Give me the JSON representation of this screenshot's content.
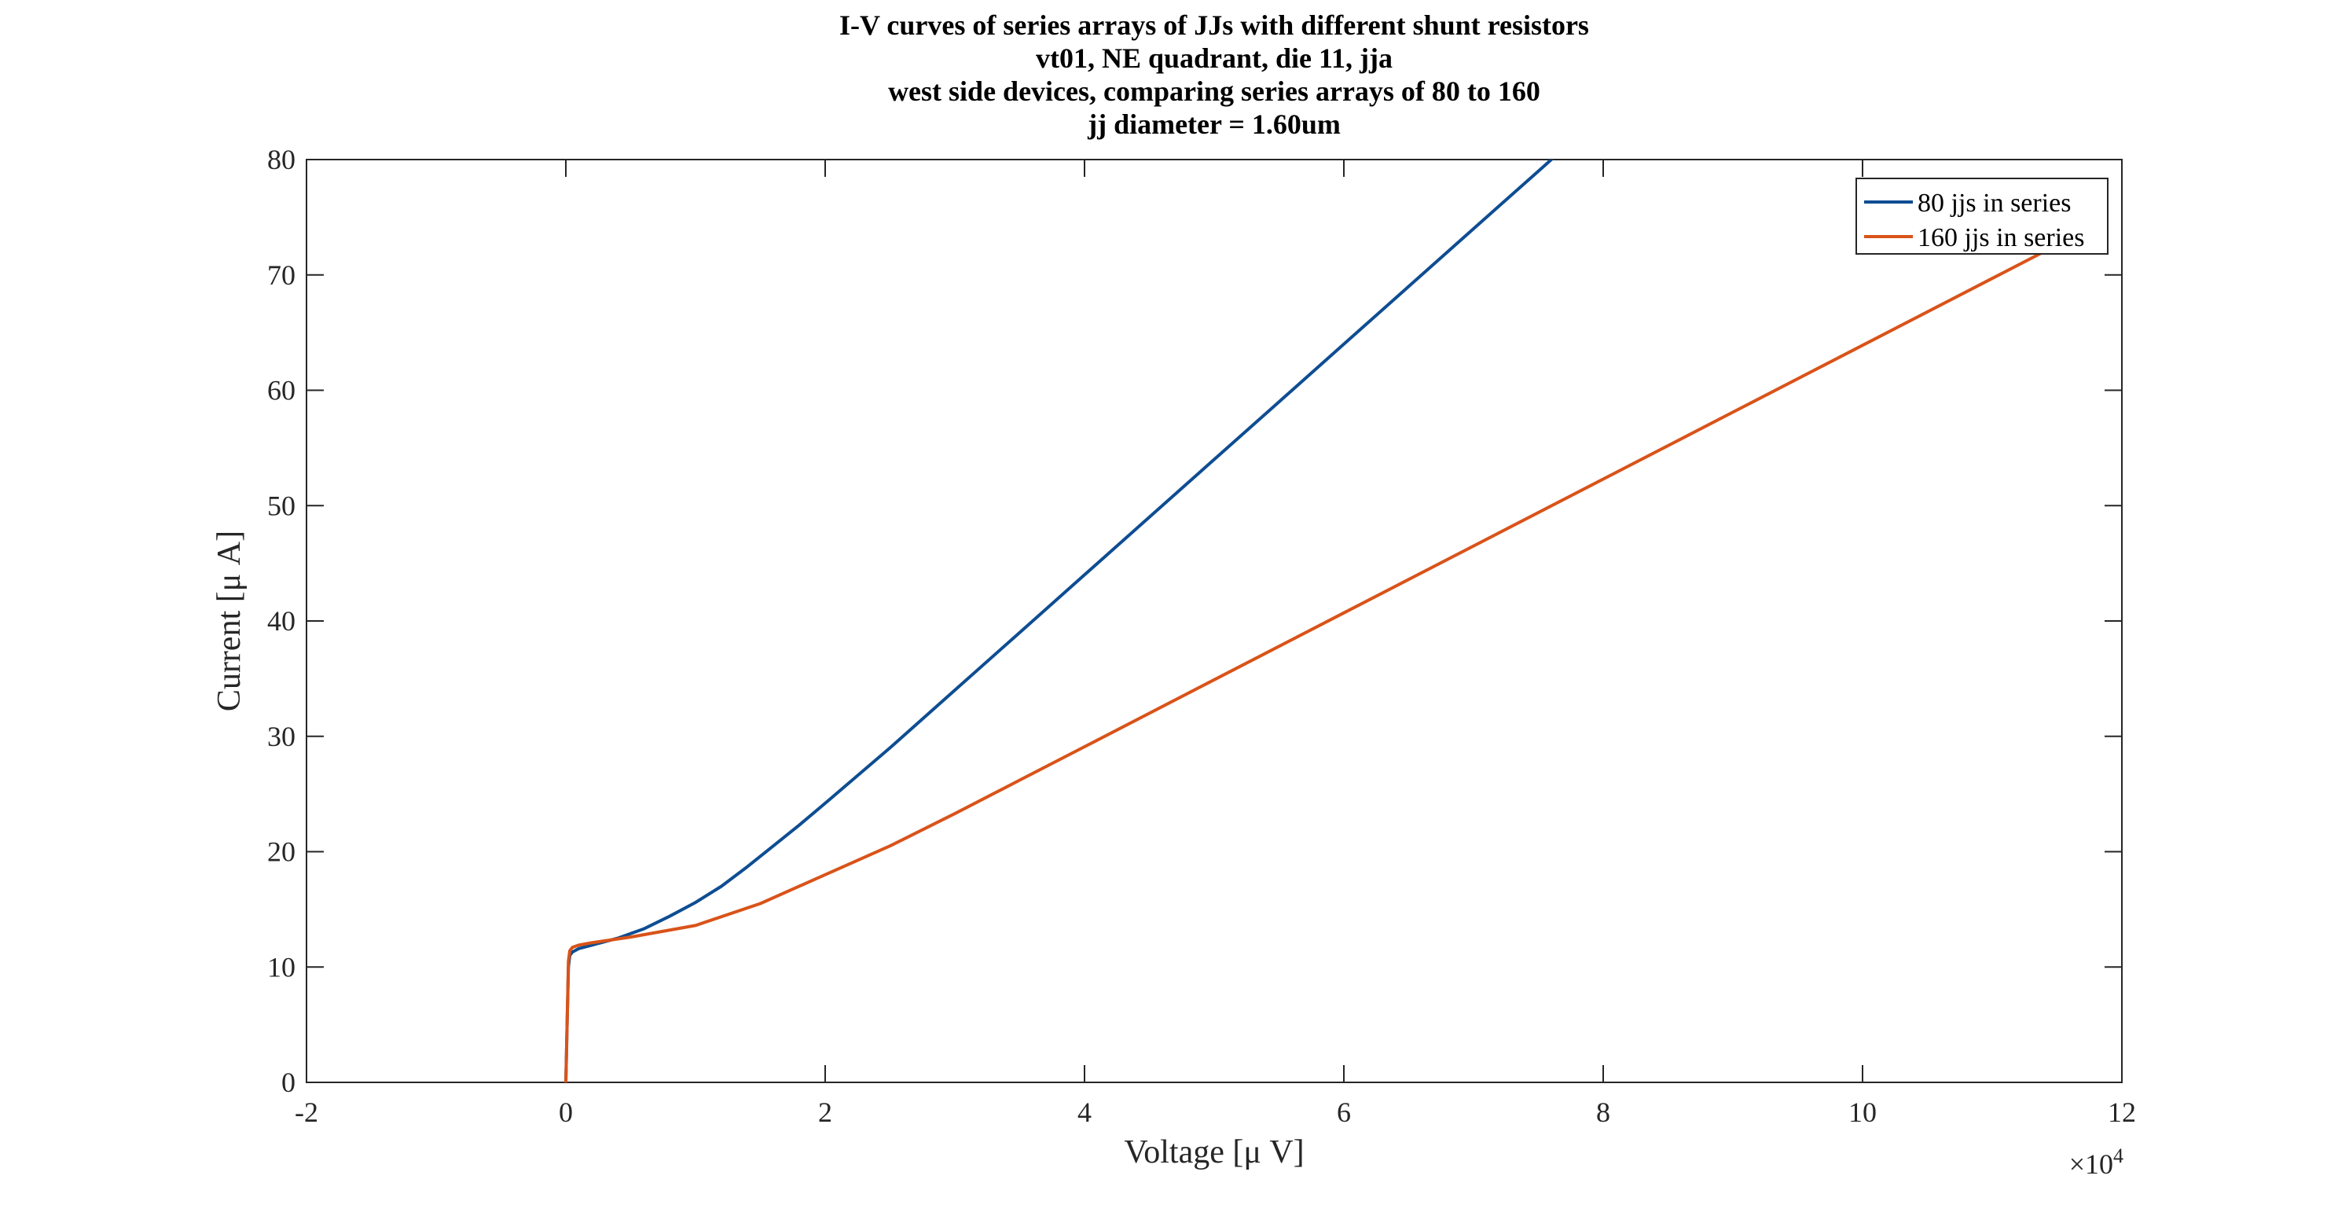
{
  "chart_data": {
    "type": "line",
    "title": [
      "I-V curves of series arrays of JJs with different shunt resistors",
      "vt01, NE quadrant, die 11, jja",
      "west side devices, comparing series arrays of 80 to 160",
      "jj diameter = 1.60um"
    ],
    "xlabel": "Voltage [μ V]",
    "ylabel": "Current [μ A]",
    "x_exponent_label": "×10",
    "x_exponent_power": "4",
    "xlim": [
      -2,
      12
    ],
    "ylim": [
      0,
      80
    ],
    "x_ticks": [
      -2,
      0,
      2,
      4,
      6,
      8,
      10,
      12
    ],
    "y_ticks": [
      0,
      10,
      20,
      30,
      40,
      50,
      60,
      70,
      80
    ],
    "grid": false,
    "legend_position": "top-right",
    "series": [
      {
        "name": "80 jjs in series",
        "color": "#0e4d92",
        "x": [
          0.0,
          0.01,
          0.02,
          0.03,
          0.05,
          0.1,
          0.2,
          0.4,
          0.6,
          0.8,
          1.0,
          1.2,
          1.4,
          1.6,
          1.8,
          2.0,
          2.5,
          3.0,
          3.5,
          4.0,
          4.5,
          5.0,
          5.5,
          6.0,
          6.5,
          7.0,
          7.5,
          8.0
        ],
        "y": [
          0.0,
          5.0,
          10.0,
          11.0,
          11.3,
          11.6,
          11.9,
          12.5,
          13.3,
          14.4,
          15.6,
          17.0,
          18.7,
          20.5,
          22.3,
          24.2,
          29.0,
          34.0,
          39.0,
          44.0,
          49.0,
          54.0,
          59.0,
          64.0,
          69.0,
          74.0,
          79.0,
          84.0
        ]
      },
      {
        "name": "160 jjs in series",
        "color": "#d95319",
        "x": [
          0.0,
          0.01,
          0.02,
          0.03,
          0.05,
          0.1,
          0.2,
          0.5,
          1.0,
          1.5,
          2.0,
          2.5,
          3.0,
          3.5,
          4.0,
          5.0,
          6.0,
          7.0,
          8.0,
          9.0,
          10.0,
          11.0,
          11.5
        ],
        "y": [
          0.0,
          5.0,
          10.5,
          11.4,
          11.7,
          11.9,
          12.1,
          12.6,
          13.6,
          15.5,
          18.0,
          20.5,
          23.3,
          26.2,
          29.1,
          34.9,
          40.7,
          46.5,
          52.3,
          58.1,
          63.9,
          69.7,
          72.6
        ]
      }
    ]
  }
}
